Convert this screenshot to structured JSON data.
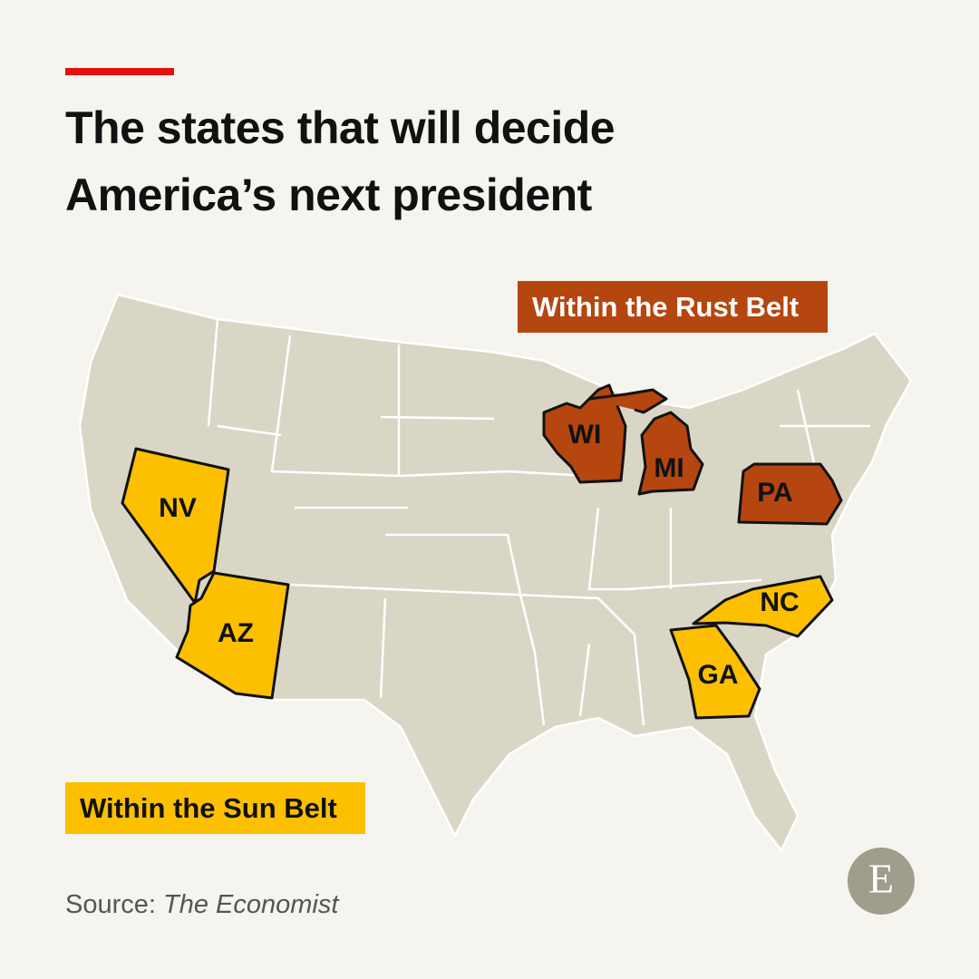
{
  "header": {
    "title_lines": [
      "The states that will decide",
      "America’s next president"
    ]
  },
  "legend": {
    "rust_belt": "Within the Rust Belt",
    "sun_belt": "Within the Sun Belt"
  },
  "states": [
    {
      "label": "WI"
    },
    {
      "label": "MI"
    },
    {
      "label": "PA"
    },
    {
      "label": "NV"
    },
    {
      "label": "AZ"
    },
    {
      "label": "NC"
    },
    {
      "label": "GA"
    }
  ],
  "source": {
    "prefix": "Source:",
    "publication": "The Economist"
  },
  "logo": "E"
}
